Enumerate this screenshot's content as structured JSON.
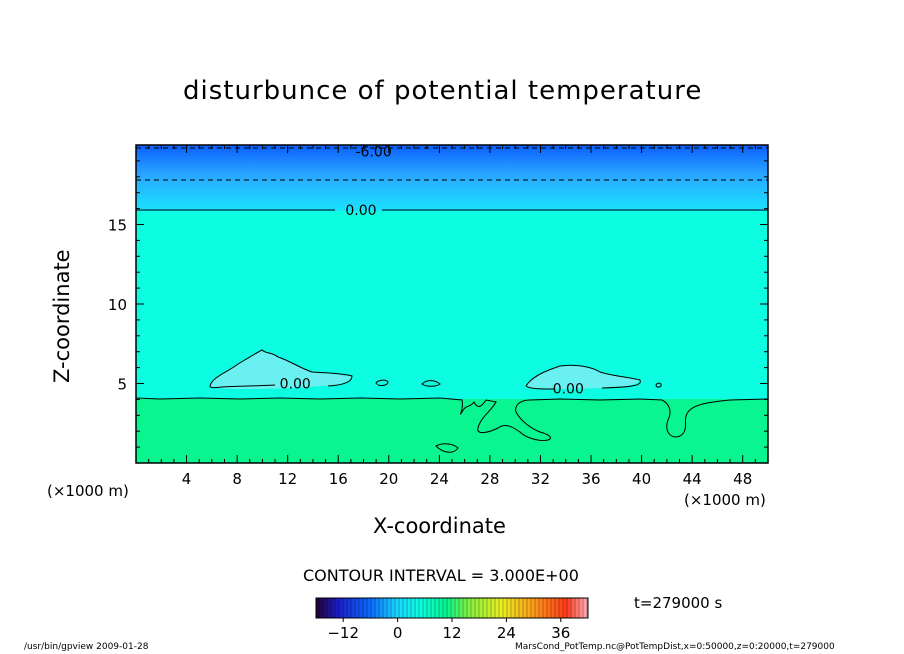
{
  "chart_data": {
    "type": "contour",
    "title": "disturbunce of potential temperature",
    "xlabel": "X-coordinate",
    "ylabel": "Z-coordinate",
    "x_unit": "(×1000 m)",
    "z_unit": "(×1000 m)",
    "xlim": [
      0,
      50
    ],
    "ylim": [
      0,
      20
    ],
    "x_ticks": [
      4,
      8,
      12,
      16,
      20,
      24,
      28,
      32,
      36,
      40,
      44,
      48
    ],
    "y_ticks": [
      5,
      10,
      15
    ],
    "contour_interval_text": "CONTOUR INTERVAL = 3.000E+00",
    "contour_labels": [
      {
        "text": "-6.00",
        "x": 18.8,
        "z": 19.6
      },
      {
        "text": "0.00",
        "x": 17.8,
        "z": 15.9
      },
      {
        "text": "0.00",
        "x": 12.6,
        "z": 5.0
      },
      {
        "text": "0.00",
        "x": 34.2,
        "z": 4.7
      }
    ],
    "colorbar": {
      "ticks": [
        -12,
        0,
        12,
        24,
        36
      ],
      "range": [
        -18,
        42
      ]
    },
    "time_label": "t=279000 s",
    "colors": {
      "upper_dark": "#0a5fff",
      "upper_mid": "#2aa6ff",
      "upper_light": "#19e3ff",
      "main": "#0dfde2",
      "lower": "#08f58f",
      "near_zero_patch": "#6af0f0"
    }
  },
  "footer": {
    "left": "/usr/bin/gpview   2009-01-28",
    "right": "MarsCond_PotTemp.nc@PotTempDist,x=0:50000,z=0:20000,t=279000"
  }
}
